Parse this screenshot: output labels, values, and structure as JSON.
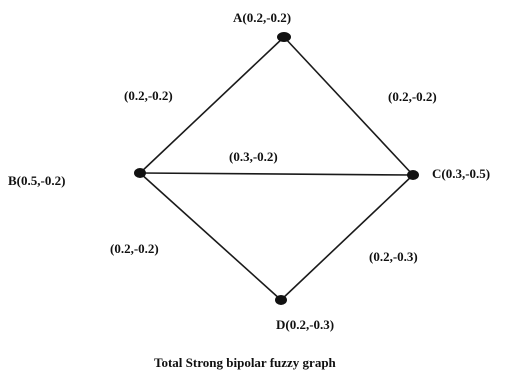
{
  "graph": {
    "nodes": [
      {
        "id": "A",
        "label": "A(0.2,-0.2)"
      },
      {
        "id": "B",
        "label": "B(0.5,-0.2)"
      },
      {
        "id": "C",
        "label": "C(0.3,-0.5)"
      },
      {
        "id": "D",
        "label": "D(0.2,-0.3)"
      }
    ],
    "edges": [
      {
        "from": "A",
        "to": "B",
        "label": "(0.2,-0.2)"
      },
      {
        "from": "A",
        "to": "C",
        "label": "(0.2,-0.2)"
      },
      {
        "from": "B",
        "to": "C",
        "label": "(0.3,-0.2)"
      },
      {
        "from": "B",
        "to": "D",
        "label": "(0.2,-0.2)"
      },
      {
        "from": "C",
        "to": "D",
        "label": "(0.2,-0.3)"
      }
    ]
  },
  "caption": "Total Strong bipolar fuzzy graph"
}
